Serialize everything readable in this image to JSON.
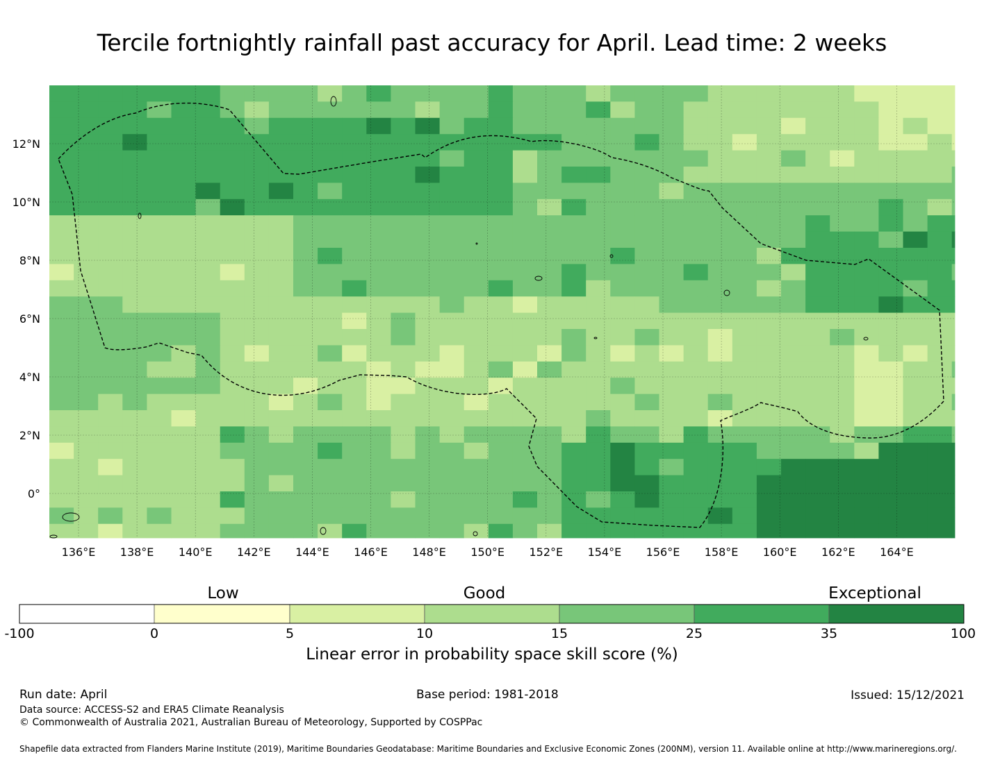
{
  "title": "Tercile fortnightly rainfall past accuracy for April. Lead time: 2 weeks",
  "map": {
    "lon_ticks": [
      "136°E",
      "138°E",
      "140°E",
      "142°E",
      "144°E",
      "146°E",
      "148°E",
      "150°E",
      "152°E",
      "154°E",
      "156°E",
      "158°E",
      "160°E",
      "162°E",
      "164°E"
    ],
    "lat_ticks": [
      "12°N",
      "10°N",
      "8°N",
      "6°N",
      "4°N",
      "2°N",
      "0°"
    ]
  },
  "colorbar": {
    "categories": [
      "Low",
      "Good",
      "Exceptional"
    ],
    "bounds": [
      "-100",
      "0",
      "5",
      "10",
      "15",
      "25",
      "35",
      "100"
    ],
    "colors": [
      "#ffffff",
      "#ffffcc",
      "#d9f0a3",
      "#addd8e",
      "#78c679",
      "#41ab5d",
      "#238443"
    ],
    "label": "Linear error in probability space skill score (%)"
  },
  "footer": {
    "run_date": "Run date: April",
    "base_period": "Base period: 1981-2018",
    "issued": "Issued: 15/12/2021",
    "data_source": "Data source: ACCESS-S2 and ERA5 Climate Reanalysis",
    "copyright": "© Commonwealth of Australia 2021, Australian Bureau of Meteorology, Supported by COSPPac",
    "shapefile": "Shapefile data extracted from Flanders Marine Institute (2019), Maritime Boundaries Geodatabase: Maritime Boundaries and Exclusive Economic Zones (200NM), version 11. Available online at http://www.marineregions.org/."
  }
}
